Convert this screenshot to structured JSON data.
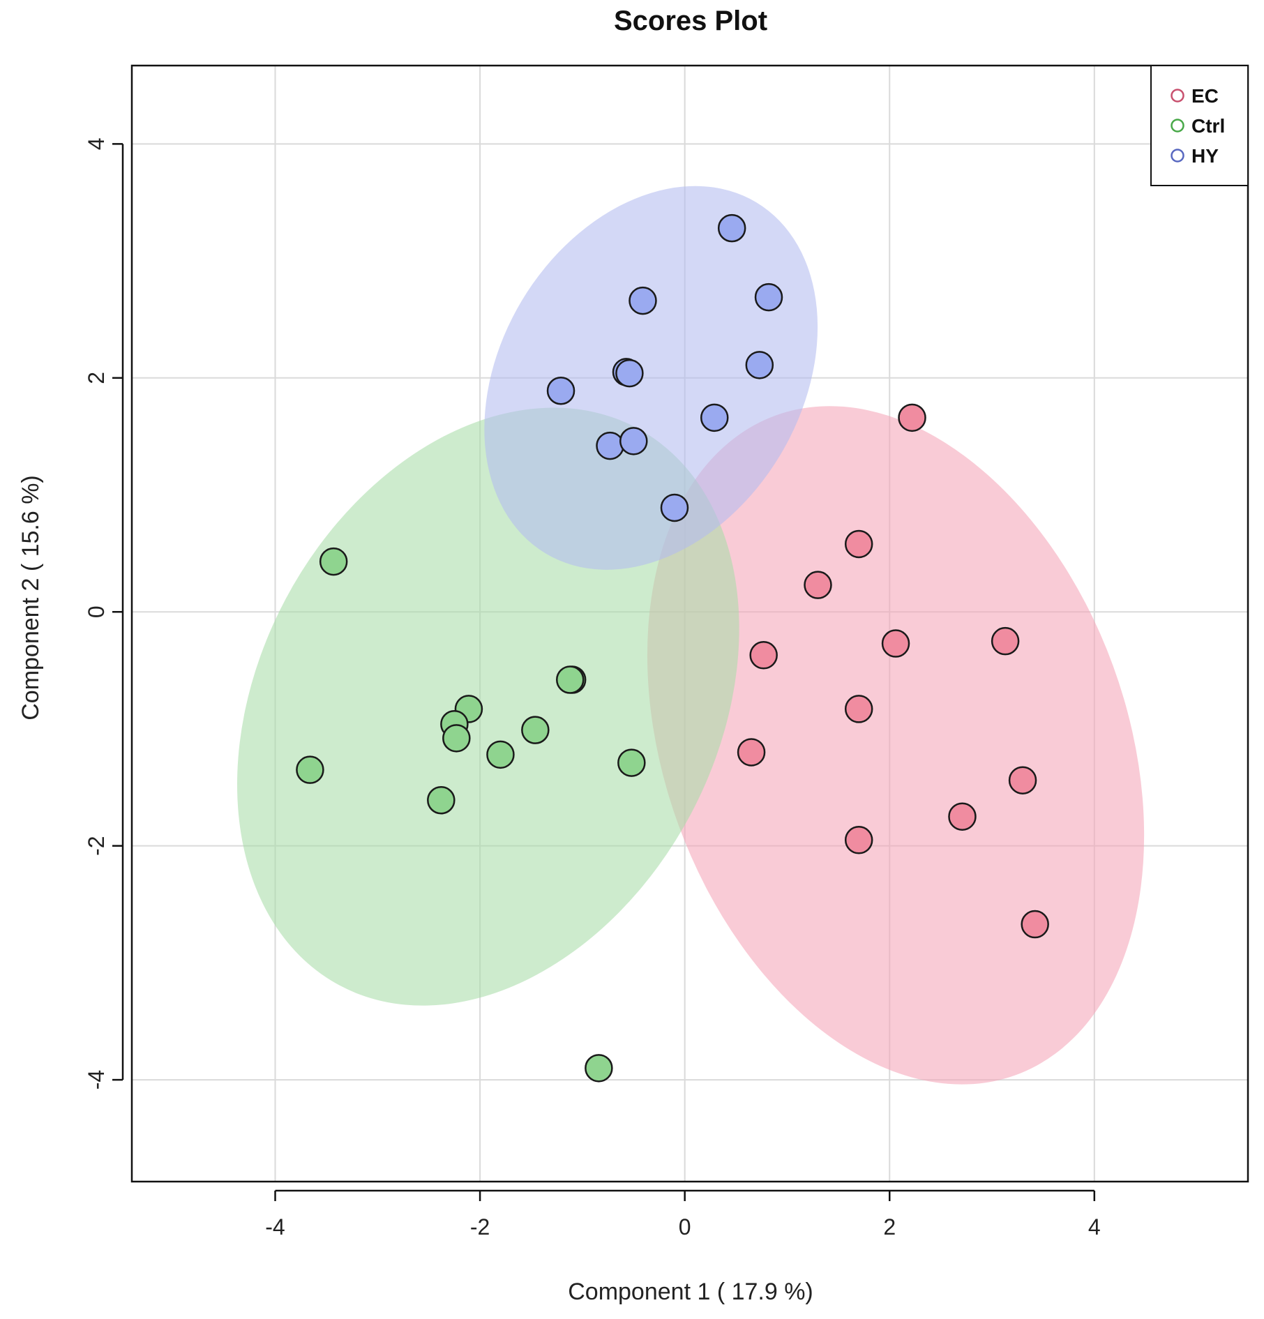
{
  "chart_data": {
    "type": "scatter",
    "title": "Scores Plot",
    "xlabel": "Component 1 ( 17.9 %)",
    "ylabel": "Component 2 ( 15.6 %)",
    "xlim": [
      -5.4,
      5.5
    ],
    "ylim": [
      -4.87,
      4.67
    ],
    "xticks": [
      -4,
      -2,
      0,
      2,
      4
    ],
    "yticks": [
      -4,
      -2,
      0,
      2,
      4
    ],
    "xtick_labels": [
      "-4",
      "-2",
      "0",
      "2",
      "4"
    ],
    "ytick_labels": [
      "-4",
      "-2",
      "0",
      "2",
      "4"
    ],
    "grid": true,
    "legend_position": "top-right",
    "series": [
      {
        "name": "EC",
        "color": "#f08ca0",
        "legend_color": "#c8506e",
        "ellipse_color": "#f4a6b8",
        "ellipse": {
          "cx": 2.06,
          "cy": -1.14,
          "rx_units": 2.26,
          "ry_units": 3.0,
          "rotate_deg": -20
        },
        "points": [
          [
            2.22,
            1.66
          ],
          [
            1.7,
            0.58
          ],
          [
            1.3,
            0.23
          ],
          [
            0.77,
            -0.37
          ],
          [
            2.06,
            -0.27
          ],
          [
            3.13,
            -0.25
          ],
          [
            1.7,
            -0.83
          ],
          [
            0.65,
            -1.2
          ],
          [
            3.3,
            -1.44
          ],
          [
            2.71,
            -1.75
          ],
          [
            1.7,
            -1.95
          ],
          [
            3.42,
            -2.67
          ]
        ]
      },
      {
        "name": "Ctrl",
        "color": "#8fd48f",
        "legend_color": "#48a848",
        "ellipse_color": "#a8dca8",
        "ellipse": {
          "cx": -1.92,
          "cy": -0.81,
          "rx_units": 2.24,
          "ry_units": 2.7,
          "rotate_deg": 28
        },
        "points": [
          [
            -3.43,
            0.43
          ],
          [
            -1.1,
            -0.58
          ],
          [
            -1.12,
            -0.58
          ],
          [
            -2.11,
            -0.83
          ],
          [
            -2.25,
            -0.96
          ],
          [
            -2.23,
            -1.08
          ],
          [
            -1.46,
            -1.01
          ],
          [
            -1.8,
            -1.22
          ],
          [
            -0.52,
            -1.29
          ],
          [
            -3.66,
            -1.35
          ],
          [
            -2.38,
            -1.61
          ],
          [
            -0.84,
            -3.9
          ]
        ]
      },
      {
        "name": "HY",
        "color": "#9aaaf0",
        "legend_color": "#5868c0",
        "ellipse_color": "#b4bcf0",
        "ellipse": {
          "cx": -0.33,
          "cy": 2.0,
          "rx_units": 1.47,
          "ry_units": 1.75,
          "rotate_deg": 31
        },
        "points": [
          [
            0.46,
            3.28
          ],
          [
            -0.41,
            2.66
          ],
          [
            0.82,
            2.69
          ],
          [
            -0.57,
            2.05
          ],
          [
            -0.54,
            2.04
          ],
          [
            0.73,
            2.11
          ],
          [
            -1.21,
            1.89
          ],
          [
            0.29,
            1.66
          ],
          [
            -0.73,
            1.42
          ],
          [
            -0.5,
            1.46
          ],
          [
            -0.1,
            0.89
          ]
        ]
      }
    ]
  }
}
